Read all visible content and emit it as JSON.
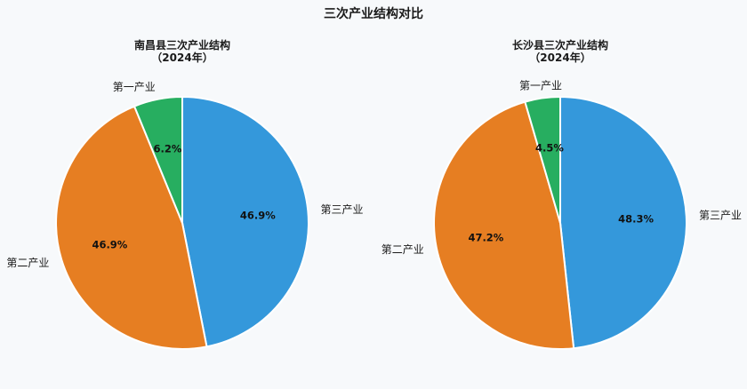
{
  "chart_data": {
    "title": "三次产业结构对比",
    "type": "pie",
    "categories": [
      "第三产业",
      "第二产业",
      "第一产业"
    ],
    "colors": [
      "#3498db",
      "#e67e22",
      "#27ae60"
    ],
    "pies": [
      {
        "title_line1": "南昌县三次产业结构",
        "title_line2": "（2024年）",
        "values": [
          46.9,
          46.9,
          6.2
        ],
        "labels": [
          "46.9%",
          "46.9%",
          "6.2%"
        ]
      },
      {
        "title_line1": "长沙县三次产业结构",
        "title_line2": "（2024年）",
        "values": [
          48.3,
          47.2,
          4.5
        ],
        "labels": [
          "48.3%",
          "47.2%",
          "4.5%"
        ]
      }
    ]
  }
}
